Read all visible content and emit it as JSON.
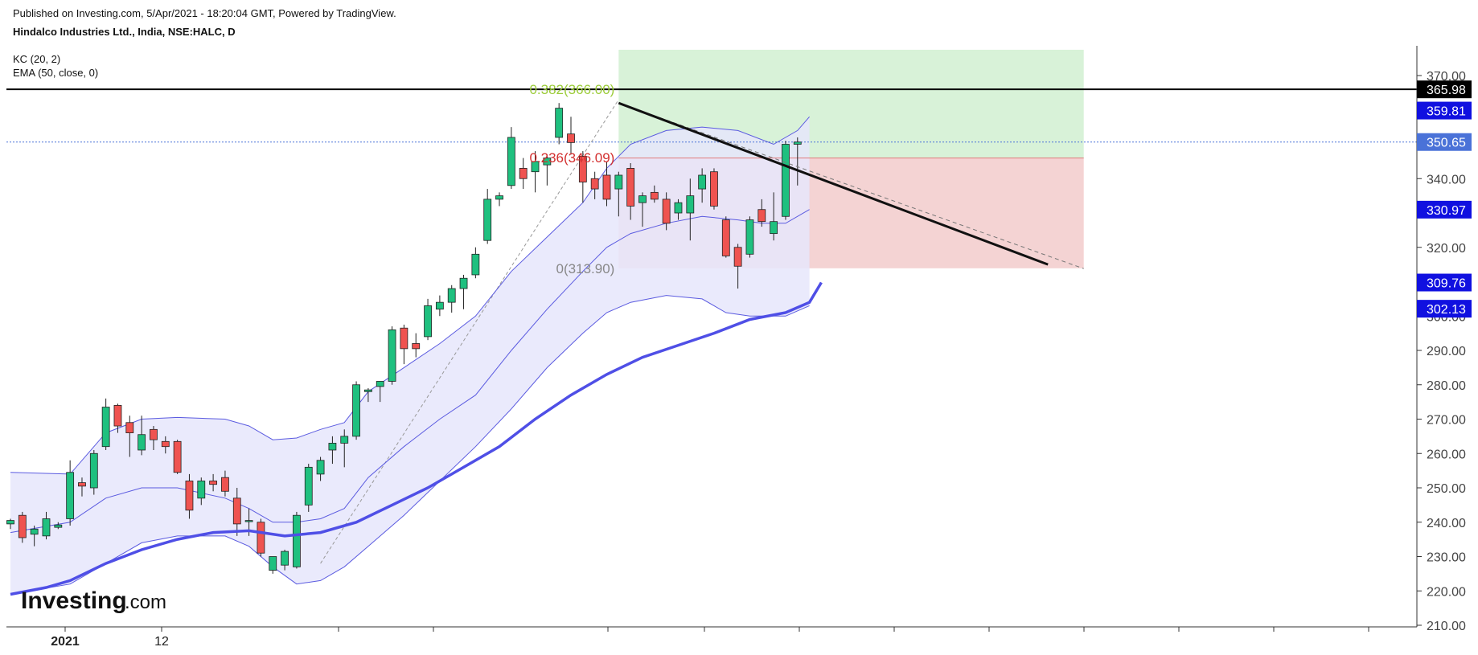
{
  "header": {
    "published": "Published on Investing.com, 5/Apr/2021 - 18:20:04 GMT, Powered by TradingView.",
    "symbol": "Hindalco Industries Ltd., India, NSE:HALC, D",
    "indicator_kc": "KC (20, 2)",
    "indicator_ema": "EMA (50, close, 0)"
  },
  "logo": {
    "main": "Investing",
    "suffix": ".com"
  },
  "colors": {
    "up": "#1fc07f",
    "down": "#ef5350",
    "wick": "#222222",
    "kc_band": "#5b5be0",
    "kc_fill": "#e6e6fb",
    "ema": "#4f4fe6",
    "target_zone": "#d8f2d8",
    "stop_zone": "#f4d3d3",
    "badge_blue": "#1010e0",
    "badge_black": "#000000",
    "badge_light": "#4a72d8"
  },
  "chart_data": {
    "type": "candlestick",
    "ylim": [
      210,
      377
    ],
    "y_ticks": [
      "370.00",
      "360.00",
      "350.00",
      "340.00",
      "330.00",
      "320.00",
      "310.00",
      "300.00",
      "290.00",
      "280.00",
      "270.00",
      "260.00",
      "250.00",
      "240.00",
      "230.00",
      "220.00",
      "210.00"
    ],
    "x_labels": [
      "2021",
      "12"
    ],
    "price_badges": [
      {
        "label": "365.98",
        "value": 365.98,
        "style": "black"
      },
      {
        "label": "359.81",
        "value": 359.81,
        "style": "blue"
      },
      {
        "label": "350.65",
        "value": 350.65,
        "style": "light"
      },
      {
        "label": "330.97",
        "value": 330.97,
        "style": "blue"
      },
      {
        "label": "309.76",
        "value": 309.76,
        "style": "blue"
      },
      {
        "label": "302.13",
        "value": 302.13,
        "style": "blue"
      }
    ],
    "fib_levels": [
      {
        "label": "0.382(366.00)",
        "value": 366.0,
        "color": "#9ccc3a"
      },
      {
        "label": "0.236(346.09)",
        "value": 346.09,
        "color": "#d32f2f"
      },
      {
        "label": "0(313.90)",
        "value": 313.9,
        "color": "#888888"
      }
    ],
    "horizontal_lines": [
      {
        "value": 365.98,
        "style": "solid-black"
      },
      {
        "value": 350.65,
        "style": "dotted-blue"
      }
    ],
    "position_zone": {
      "start_index": 51,
      "end_index": 90,
      "top": 377.5,
      "entry": 346.0,
      "stop": 313.9
    },
    "trendline": {
      "start": [
        51,
        362
      ],
      "end": [
        87,
        315
      ],
      "dashed_end": [
        90,
        313.8
      ]
    },
    "fib_diagonal": {
      "start": [
        26,
        228
      ],
      "end": [
        51,
        363
      ]
    },
    "candles": [
      {
        "o": 239.5,
        "h": 241,
        "l": 238,
        "c": 240.5
      },
      {
        "o": 242,
        "h": 243,
        "l": 234,
        "c": 235.5
      },
      {
        "o": 236.5,
        "h": 239,
        "l": 233,
        "c": 238
      },
      {
        "o": 236,
        "h": 243,
        "l": 235,
        "c": 241
      },
      {
        "o": 238.5,
        "h": 240,
        "l": 238,
        "c": 239.2
      },
      {
        "o": 241,
        "h": 258,
        "l": 239,
        "c": 254.5
      },
      {
        "o": 251.5,
        "h": 253,
        "l": 247.5,
        "c": 250.5
      },
      {
        "o": 250,
        "h": 261,
        "l": 248,
        "c": 260
      },
      {
        "o": 262,
        "h": 276,
        "l": 261,
        "c": 273.5
      },
      {
        "o": 274,
        "h": 274.5,
        "l": 266,
        "c": 268
      },
      {
        "o": 269,
        "h": 271,
        "l": 259,
        "c": 266
      },
      {
        "o": 261,
        "h": 271,
        "l": 259.5,
        "c": 265.5
      },
      {
        "o": 267,
        "h": 268,
        "l": 261,
        "c": 264
      },
      {
        "o": 263.5,
        "h": 265,
        "l": 260,
        "c": 262
      },
      {
        "o": 263.5,
        "h": 264,
        "l": 254,
        "c": 254.5
      },
      {
        "o": 252,
        "h": 254,
        "l": 241,
        "c": 243.5
      },
      {
        "o": 247,
        "h": 253,
        "l": 245,
        "c": 252
      },
      {
        "o": 252,
        "h": 254,
        "l": 249,
        "c": 251
      },
      {
        "o": 253,
        "h": 255,
        "l": 247.5,
        "c": 249
      },
      {
        "o": 247,
        "h": 250,
        "l": 236,
        "c": 239.5
      },
      {
        "o": 240.5,
        "h": 244,
        "l": 236,
        "c": 240.5
      },
      {
        "o": 240,
        "h": 241,
        "l": 230,
        "c": 231
      },
      {
        "o": 226,
        "h": 230,
        "l": 225,
        "c": 230
      },
      {
        "o": 227.5,
        "h": 232,
        "l": 226,
        "c": 231.5
      },
      {
        "o": 227,
        "h": 243,
        "l": 226.5,
        "c": 242
      },
      {
        "o": 245,
        "h": 257,
        "l": 243,
        "c": 256
      },
      {
        "o": 254,
        "h": 259,
        "l": 252,
        "c": 258
      },
      {
        "o": 261,
        "h": 265,
        "l": 257,
        "c": 263
      },
      {
        "o": 263,
        "h": 267,
        "l": 256,
        "c": 265
      },
      {
        "o": 265,
        "h": 281,
        "l": 264,
        "c": 280
      },
      {
        "o": 278,
        "h": 279,
        "l": 275,
        "c": 278.5
      },
      {
        "o": 279.5,
        "h": 281,
        "l": 275,
        "c": 281
      },
      {
        "o": 281,
        "h": 297,
        "l": 280,
        "c": 296
      },
      {
        "o": 296.5,
        "h": 297.5,
        "l": 286,
        "c": 290.5
      },
      {
        "o": 292,
        "h": 295,
        "l": 288,
        "c": 290.5
      },
      {
        "o": 294,
        "h": 305,
        "l": 293,
        "c": 303
      },
      {
        "o": 302,
        "h": 306,
        "l": 300,
        "c": 304
      },
      {
        "o": 304,
        "h": 309,
        "l": 301,
        "c": 308
      },
      {
        "o": 308,
        "h": 312,
        "l": 302,
        "c": 311
      },
      {
        "o": 312,
        "h": 320,
        "l": 311,
        "c": 318
      },
      {
        "o": 322,
        "h": 337,
        "l": 321,
        "c": 334
      },
      {
        "o": 334,
        "h": 336,
        "l": 332,
        "c": 335
      },
      {
        "o": 338,
        "h": 355,
        "l": 337,
        "c": 352
      },
      {
        "o": 343,
        "h": 346,
        "l": 337,
        "c": 340
      },
      {
        "o": 342,
        "h": 348,
        "l": 336,
        "c": 345
      },
      {
        "o": 344,
        "h": 347,
        "l": 338,
        "c": 346
      },
      {
        "o": 352,
        "h": 362,
        "l": 350,
        "c": 360.5
      },
      {
        "o": 353,
        "h": 358,
        "l": 347,
        "c": 350.5
      },
      {
        "o": 346.5,
        "h": 348,
        "l": 333,
        "c": 339
      },
      {
        "o": 340,
        "h": 342,
        "l": 334,
        "c": 337
      },
      {
        "o": 341,
        "h": 345,
        "l": 332,
        "c": 334
      },
      {
        "o": 337,
        "h": 342,
        "l": 329,
        "c": 341
      },
      {
        "o": 343,
        "h": 344.5,
        "l": 328,
        "c": 332
      },
      {
        "o": 333,
        "h": 336,
        "l": 326,
        "c": 335
      },
      {
        "o": 336,
        "h": 338,
        "l": 333,
        "c": 334
      },
      {
        "o": 334,
        "h": 336,
        "l": 325,
        "c": 327
      },
      {
        "o": 330,
        "h": 334,
        "l": 328,
        "c": 333
      },
      {
        "o": 330,
        "h": 340,
        "l": 322,
        "c": 335
      },
      {
        "o": 337,
        "h": 343,
        "l": 333,
        "c": 341
      },
      {
        "o": 342,
        "h": 343,
        "l": 331,
        "c": 332
      },
      {
        "o": 328,
        "h": 329,
        "l": 317,
        "c": 317.5
      },
      {
        "o": 320,
        "h": 321,
        "l": 308,
        "c": 314.5
      },
      {
        "o": 318,
        "h": 329,
        "l": 317,
        "c": 328
      },
      {
        "o": 331,
        "h": 334,
        "l": 326,
        "c": 327.5
      },
      {
        "o": 324,
        "h": 336,
        "l": 322,
        "c": 327.5
      },
      {
        "o": 329,
        "h": 351,
        "l": 328,
        "c": 350
      },
      {
        "o": 350,
        "h": 352,
        "l": 338,
        "c": 350.65
      }
    ],
    "kc_upper": [
      [
        0,
        254.5
      ],
      [
        5,
        254
      ],
      [
        8,
        266
      ],
      [
        11,
        270
      ],
      [
        14,
        270.5
      ],
      [
        18,
        270
      ],
      [
        20,
        268
      ],
      [
        22,
        264
      ],
      [
        24,
        264.5
      ],
      [
        26,
        267
      ],
      [
        28,
        269
      ],
      [
        30,
        278
      ],
      [
        33,
        285
      ],
      [
        36,
        292
      ],
      [
        39,
        300
      ],
      [
        42,
        313
      ],
      [
        45,
        323
      ],
      [
        48,
        333
      ],
      [
        50,
        343
      ],
      [
        52,
        350
      ],
      [
        55,
        354
      ],
      [
        58,
        355
      ],
      [
        61,
        354
      ],
      [
        64,
        350
      ],
      [
        66,
        354
      ],
      [
        67,
        358
      ]
    ],
    "kc_middle": [
      [
        0,
        237
      ],
      [
        5,
        240
      ],
      [
        8,
        247
      ],
      [
        11,
        250
      ],
      [
        14,
        250
      ],
      [
        18,
        247
      ],
      [
        20,
        244
      ],
      [
        22,
        240
      ],
      [
        24,
        240
      ],
      [
        26,
        241
      ],
      [
        28,
        244
      ],
      [
        30,
        253
      ],
      [
        33,
        262
      ],
      [
        36,
        270
      ],
      [
        39,
        277
      ],
      [
        42,
        290
      ],
      [
        45,
        302
      ],
      [
        48,
        313
      ],
      [
        50,
        320
      ],
      [
        52,
        324
      ],
      [
        55,
        327
      ],
      [
        58,
        329
      ],
      [
        61,
        328
      ],
      [
        63,
        327
      ],
      [
        65,
        327
      ],
      [
        67,
        331
      ]
    ],
    "kc_lower": [
      [
        0,
        219
      ],
      [
        5,
        222
      ],
      [
        8,
        228
      ],
      [
        11,
        234
      ],
      [
        14,
        236
      ],
      [
        18,
        236
      ],
      [
        20,
        233
      ],
      [
        22,
        227
      ],
      [
        24,
        222
      ],
      [
        26,
        223
      ],
      [
        28,
        227
      ],
      [
        30,
        233
      ],
      [
        33,
        242
      ],
      [
        36,
        252
      ],
      [
        39,
        262
      ],
      [
        42,
        273
      ],
      [
        45,
        285
      ],
      [
        48,
        295
      ],
      [
        50,
        301
      ],
      [
        52,
        304
      ],
      [
        55,
        306
      ],
      [
        58,
        305
      ],
      [
        60,
        301
      ],
      [
        62,
        300
      ],
      [
        65,
        300
      ],
      [
        67,
        303
      ]
    ],
    "ema": [
      [
        0,
        219
      ],
      [
        3,
        221
      ],
      [
        5,
        223
      ],
      [
        8,
        228
      ],
      [
        11,
        232
      ],
      [
        14,
        235
      ],
      [
        17,
        237
      ],
      [
        20,
        237.5
      ],
      [
        23,
        236
      ],
      [
        26,
        237
      ],
      [
        29,
        240
      ],
      [
        32,
        245
      ],
      [
        35,
        250
      ],
      [
        38,
        256
      ],
      [
        41,
        262
      ],
      [
        44,
        270
      ],
      [
        47,
        277
      ],
      [
        50,
        283
      ],
      [
        53,
        288
      ],
      [
        56,
        291.5
      ],
      [
        59,
        295
      ],
      [
        62,
        299
      ],
      [
        65,
        301
      ],
      [
        67,
        304
      ],
      [
        68,
        309.76
      ]
    ]
  }
}
